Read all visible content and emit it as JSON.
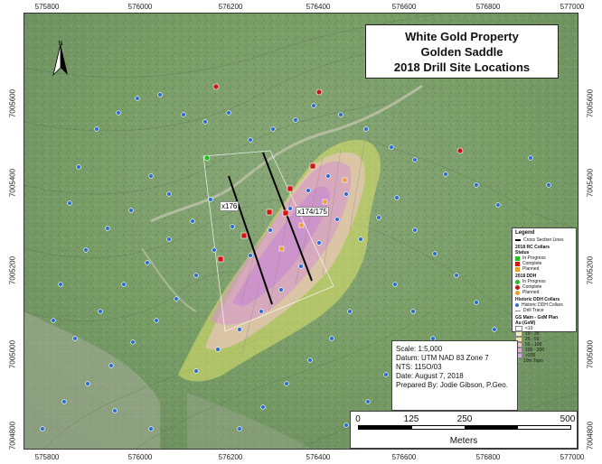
{
  "title": {
    "line1": "White Gold Property",
    "line2": "Golden Saddle",
    "line3": "2018 Drill Site Locations"
  },
  "north_label": "N",
  "axes": {
    "easting": [
      "575800",
      "576000",
      "576200",
      "576400",
      "576600",
      "576800",
      "577000"
    ],
    "northing": [
      "7005600",
      "7005400",
      "7005200",
      "7005000",
      "7004800"
    ]
  },
  "section_labels": [
    "x176",
    "x174/175"
  ],
  "legend": {
    "title": "Legend",
    "cross_section": "Cross Section Lines",
    "rc_header": "2018 RC Collars",
    "rc_status": "Status",
    "rc_items": [
      {
        "label": "In Progress",
        "color": "#22c022"
      },
      {
        "label": "Complete",
        "color": "#d21414"
      },
      {
        "label": "Planned",
        "color": "#e8a030"
      }
    ],
    "ddh_header": "2018 DDH",
    "ddh_items": [
      {
        "label": "In Progress",
        "color": "#22c022"
      },
      {
        "label": "Complete",
        "color": "#c01818"
      },
      {
        "label": "Planned",
        "color": "#e8a030"
      }
    ],
    "hist_header": "Historic DDH Collars",
    "hist_items": [
      "Historic DDH Collars",
      "Drill Trace"
    ],
    "gs_header": "GS Main - GxM Plan",
    "gs_sub": "Au (GxM)",
    "gs_items": [
      {
        "label": "<10",
        "color": "#ffffff"
      },
      {
        "label": "10 - 25",
        "color": "#f3f3b8"
      },
      {
        "label": "25 - 50",
        "color": "#f7e6a6"
      },
      {
        "label": "50 - 100",
        "color": "#f6c6cc"
      },
      {
        "label": "100 - 200",
        "color": "#e7a7d8"
      },
      {
        "label": ">200",
        "color": "#dba6e8"
      }
    ],
    "topo": "10m Topo"
  },
  "info": {
    "scale": "Scale: 1:5,000",
    "datum": "Datum: UTM NAD 83 Zone 7",
    "nts": "NTS: 115O/03",
    "date": "Date: August 7, 2018",
    "prepared": "Prepared By: Jodie Gibson, P.Geo."
  },
  "scalebar": {
    "labels": [
      "0",
      "125",
      "250",
      "500"
    ],
    "units": "Meters"
  },
  "colors": {
    "vegetation": "#7fa06a",
    "historic_collar": "#2a6fd6",
    "rc_complete": "#d21414",
    "ddh_complete": "#c01818"
  }
}
